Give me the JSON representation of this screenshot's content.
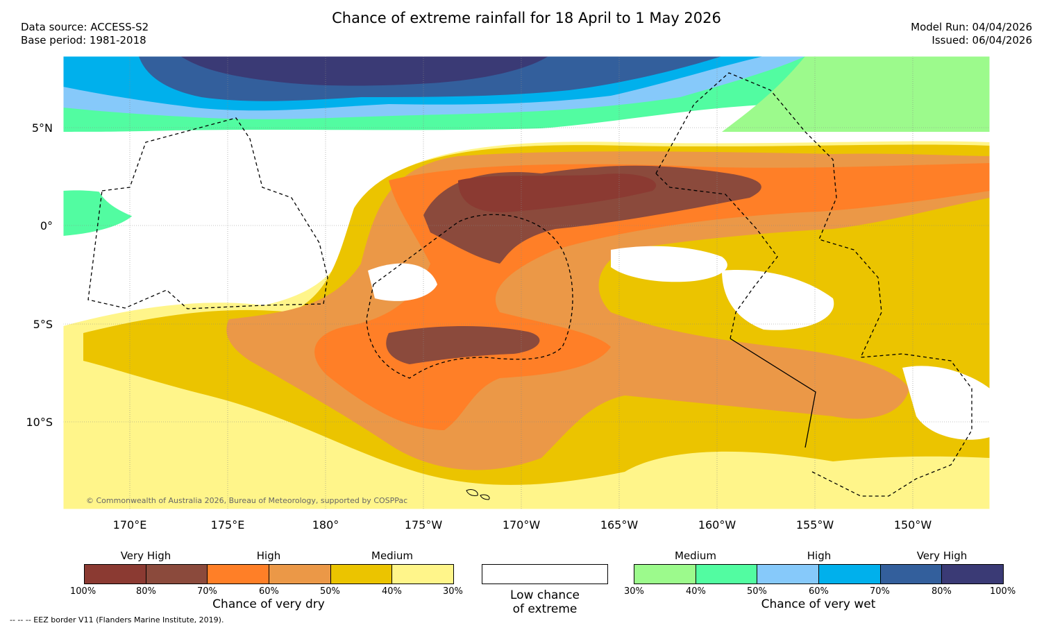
{
  "title": "Chance of extreme rainfall for 18 April to 1 May 2026",
  "data_source": "Data source: ACCESS-S2",
  "base_period": "Base period: 1981-2018",
  "model_run": "Model Run: 04/04/2026",
  "issued": "Issued: 06/04/2026",
  "lat_labels": [
    "5°N",
    "0°",
    "5°S",
    "10°S"
  ],
  "lon_labels": [
    "170°E",
    "175°E",
    "180°",
    "175°W",
    "170°W",
    "165°W",
    "160°W",
    "155°W",
    "150°W"
  ],
  "copyright": "© Commonwealth of Australia 2026, Bureau of Meteorology, supported by COSPPac",
  "eez_note": "--  --  -- EEZ border V11 (Flanders Marine Institute, 2019).",
  "legend_dry": {
    "groups": [
      "Very High",
      "High",
      "Medium"
    ],
    "percents": [
      "100%",
      "80%",
      "70%",
      "60%",
      "50%",
      "40%",
      "30%"
    ],
    "caption": "Chance of very dry",
    "colors": [
      "#8b3a32",
      "#8b4a3c",
      "#ff7f27",
      "#eb9847",
      "#ebc400",
      "#fff58a"
    ]
  },
  "legend_low": {
    "line1": "Low chance",
    "line2": "of extreme",
    "color": "#ffffff"
  },
  "legend_wet": {
    "groups": [
      "Medium",
      "High",
      "Very High"
    ],
    "percents": [
      "30%",
      "40%",
      "50%",
      "60%",
      "70%",
      "80%",
      "100%"
    ],
    "caption": "Chance of very wet",
    "colors": [
      "#9cfa8c",
      "#52fca1",
      "#86c9fa",
      "#00b0ec",
      "#335f9c",
      "#3a3a75"
    ]
  }
}
